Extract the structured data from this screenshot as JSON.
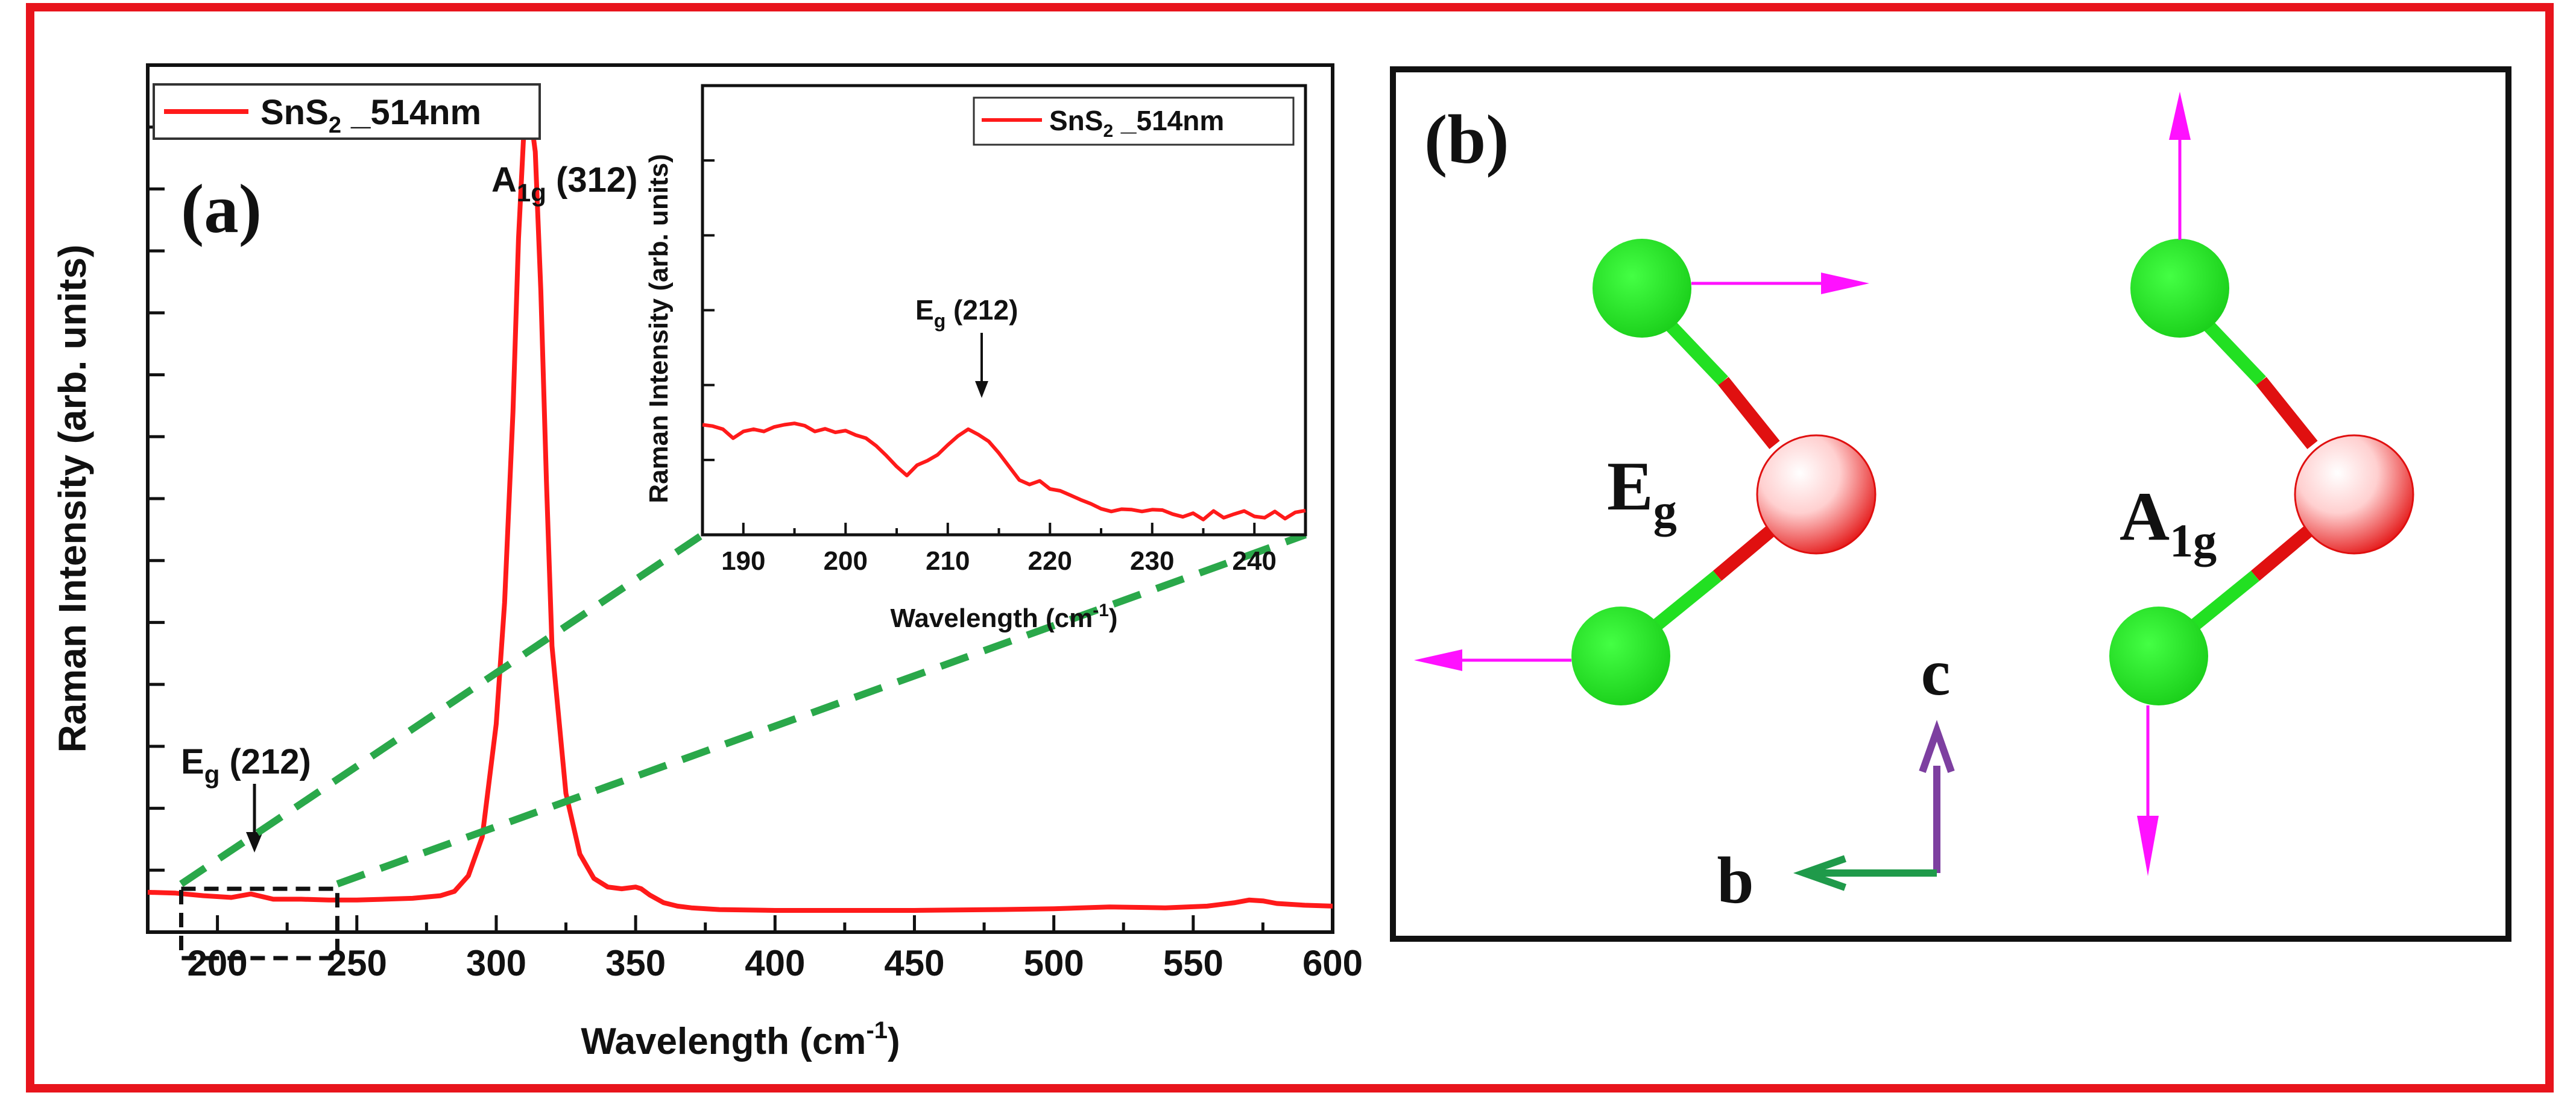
{
  "colors": {
    "frame": "#e8141c",
    "spectrum": "#ff1a1a",
    "zoom_dash": "#2aa84a",
    "sulfur": "#22e022",
    "tin_edge": "#e01010",
    "vector": "#ff11ff",
    "axis_b": "#1f9a4a",
    "axis_c": "#7d3fa0",
    "panel_border": "#111111"
  },
  "panel_a": {
    "label": "(a)",
    "legend": {
      "prefix": "SnS",
      "sub": "2",
      "suffix": " _514nm"
    },
    "peak_a1g": {
      "main": "A",
      "sub": "1g",
      "value": " (312)"
    },
    "peak_eg": {
      "main": "E",
      "sub": "g",
      "value": " (212)"
    }
  },
  "panel_b": {
    "label": "(b)",
    "mode_eg": {
      "main": "E",
      "sub": "g"
    },
    "mode_a1g": {
      "main": "A",
      "sub": "1g"
    },
    "axis_c": "c",
    "axis_b": "b"
  },
  "chart_data": [
    {
      "id": "main-spectrum",
      "type": "line",
      "title": "",
      "xlabel_main": "Wavelength (cm",
      "xlabel_sup": "-1",
      "xlabel_close": ")",
      "ylabel": "Raman Intensity (arb. units)",
      "xlim": [
        175,
        600
      ],
      "ylim": [
        0,
        100
      ],
      "xticks": [
        200,
        250,
        300,
        350,
        400,
        450,
        500,
        550,
        600
      ],
      "x_minor_step": 25,
      "y_tick_count": 14,
      "yticks_labeled": false,
      "grid": false,
      "legend_position": "top-left",
      "zoom_box": {
        "x": [
          187,
          243
        ],
        "y": [
          -3,
          5
        ]
      },
      "series": [
        {
          "name": "SnS2 _514nm",
          "x": [
            175,
            185,
            195,
            205,
            212,
            220,
            230,
            240,
            250,
            260,
            270,
            280,
            285,
            290,
            295,
            300,
            303,
            306,
            308,
            310,
            312,
            314,
            316,
            318,
            320,
            325,
            330,
            335,
            340,
            345,
            350,
            352,
            355,
            360,
            365,
            370,
            380,
            400,
            420,
            450,
            480,
            500,
            520,
            540,
            555,
            565,
            570,
            575,
            580,
            590,
            600
          ],
          "values": [
            4.6,
            4.5,
            4.2,
            4.0,
            4.4,
            3.8,
            3.8,
            3.7,
            3.7,
            3.8,
            3.9,
            4.2,
            4.7,
            6.5,
            11,
            24,
            38,
            60,
            80,
            93,
            95,
            90,
            74,
            52,
            33,
            16,
            9,
            6.2,
            5.2,
            5.0,
            5.2,
            5.0,
            4.3,
            3.4,
            3.0,
            2.8,
            2.6,
            2.5,
            2.5,
            2.5,
            2.6,
            2.7,
            2.9,
            2.8,
            3.0,
            3.4,
            3.7,
            3.6,
            3.3,
            3.1,
            3.0
          ]
        }
      ],
      "annotations": [
        "A1g (312)",
        "Eg (212)"
      ]
    },
    {
      "id": "inset-spectrum",
      "type": "line",
      "title": "",
      "xlabel_main": "Wavelength (cm",
      "xlabel_sup": "-1",
      "xlabel_close": ")",
      "ylabel": "Raman Intensity (arb. units)",
      "xlim": [
        186,
        245
      ],
      "ylim": [
        0,
        100
      ],
      "xticks": [
        190,
        200,
        210,
        220,
        230,
        240
      ],
      "x_minor_step": 5,
      "y_tick_count": 6,
      "yticks_labeled": false,
      "grid": false,
      "legend_position": "top-right",
      "series": [
        {
          "name": "SnS2 _514nm",
          "x": [
            186,
            187,
            188,
            189,
            190,
            191,
            192,
            193,
            194,
            195,
            196,
            197,
            198,
            199,
            200,
            201,
            202,
            203,
            204,
            205,
            206,
            207,
            208,
            209,
            210,
            211,
            212,
            213,
            214,
            215,
            216,
            217,
            218,
            219,
            220,
            221,
            222,
            223,
            224,
            225,
            226,
            227,
            228,
            229,
            230,
            231,
            232,
            233,
            234,
            235,
            236,
            237,
            238,
            239,
            240,
            241,
            242,
            243,
            244,
            245
          ],
          "values": [
            24.5,
            24.2,
            23.5,
            21.5,
            23,
            23.5,
            23,
            24,
            24.5,
            24.8,
            24.3,
            23,
            23.6,
            22.8,
            23.2,
            22.2,
            21.5,
            19.8,
            17.6,
            15.2,
            13.2,
            15.5,
            16.5,
            17.8,
            20,
            22,
            23.5,
            22.3,
            20.8,
            18.2,
            15.2,
            12.2,
            11.2,
            12,
            10.2,
            9.8,
            8.8,
            7.8,
            6.9,
            5.8,
            5.2,
            5.7,
            5.6,
            5.2,
            5.6,
            5.5,
            4.6,
            4.0,
            4.8,
            3.4,
            5.3,
            3.8,
            4.6,
            5.3,
            4.1,
            3.8,
            5.2,
            3.6,
            5.0,
            5.4
          ]
        }
      ],
      "annotations": [
        "Eg (212)"
      ]
    }
  ]
}
